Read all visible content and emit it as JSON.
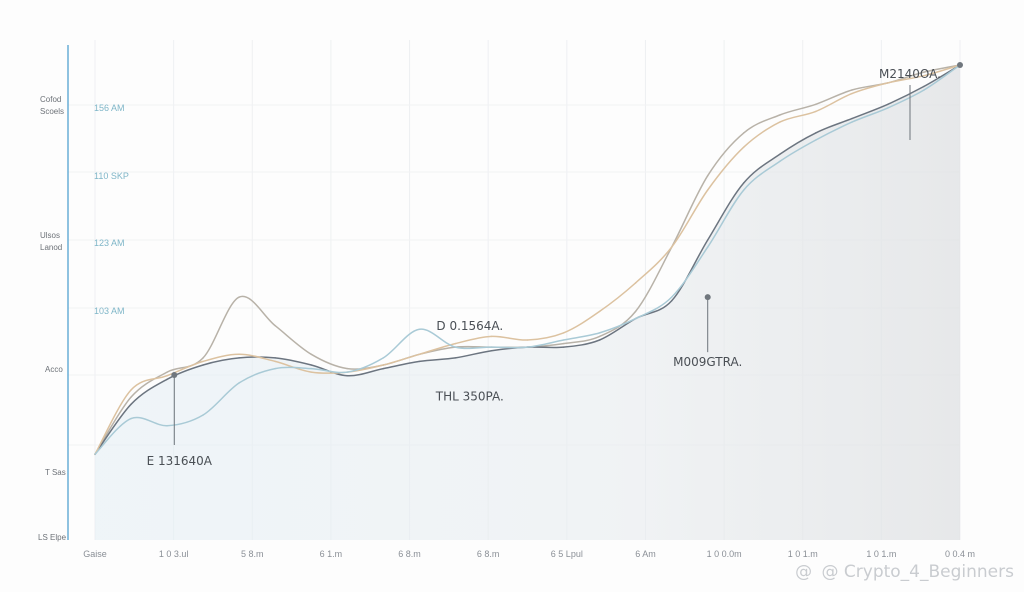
{
  "chart_data": {
    "type": "line",
    "title": "",
    "xlabel": "",
    "ylabel": "",
    "xlim": [
      0,
      12
    ],
    "ylim": [
      0,
      7
    ],
    "grid": true,
    "area_fill": true,
    "left_labels": [
      "Cofod Scoels",
      "Ulsos Lanod",
      "Acco",
      "T Sas",
      "LS Elpe"
    ],
    "yticks": [
      "156 AM",
      "110 SKP",
      "123 AM",
      "103 AM"
    ],
    "xticks": [
      "Gaise",
      "1 0 3.ul",
      "5 8.m",
      "6 1.m",
      "6 8.m",
      "6 8.m",
      "6 5 Lpul",
      "6 Am",
      "1 0 0.0m",
      "1 0 1.m",
      "1 0 1.m",
      "0 0.4 m"
    ],
    "series": [
      {
        "color": "#b8b2a8",
        "x": [
          0,
          0.5,
          1,
          1.5,
          2,
          2.5,
          3,
          3.5,
          4,
          4.5,
          5,
          5.5,
          6,
          6.5,
          7,
          7.5,
          8,
          8.5,
          9,
          9.5,
          10,
          10.5,
          11,
          11.5,
          12
        ],
        "values": [
          1.2,
          2.0,
          2.35,
          2.55,
          3.4,
          3.0,
          2.6,
          2.4,
          2.45,
          2.6,
          2.7,
          2.7,
          2.7,
          2.75,
          2.85,
          3.2,
          4.1,
          5.1,
          5.7,
          5.95,
          6.1,
          6.3,
          6.4,
          6.55,
          6.65
        ]
      },
      {
        "color": "#6c7580",
        "x": [
          0,
          0.5,
          1,
          1.5,
          2,
          2.5,
          3,
          3.5,
          4,
          4.5,
          5,
          5.5,
          6,
          6.5,
          7,
          7.5,
          8,
          8.5,
          9,
          9.5,
          10,
          10.5,
          11,
          11.5,
          12
        ],
        "values": [
          1.2,
          1.9,
          2.25,
          2.45,
          2.55,
          2.55,
          2.45,
          2.3,
          2.4,
          2.5,
          2.55,
          2.65,
          2.7,
          2.7,
          2.8,
          3.1,
          3.35,
          4.2,
          5.0,
          5.4,
          5.7,
          5.9,
          6.1,
          6.35,
          6.65
        ]
      },
      {
        "color": "#dcc2a0",
        "x": [
          0,
          0.5,
          1,
          1.5,
          2,
          2.5,
          3,
          3.5,
          4,
          4.5,
          5,
          5.5,
          6,
          6.5,
          7,
          7.5,
          8,
          8.5,
          9,
          9.5,
          10,
          10.5,
          11,
          11.5,
          12
        ],
        "values": [
          1.2,
          2.1,
          2.3,
          2.5,
          2.6,
          2.5,
          2.35,
          2.35,
          2.45,
          2.6,
          2.75,
          2.85,
          2.8,
          2.9,
          3.2,
          3.6,
          4.1,
          4.9,
          5.5,
          5.85,
          6.0,
          6.25,
          6.4,
          6.5,
          6.65
        ]
      },
      {
        "color": "#a9cad6",
        "x": [
          0,
          0.5,
          1,
          1.5,
          2,
          2.5,
          3,
          3.5,
          4,
          4.5,
          5,
          5.5,
          6,
          6.5,
          7,
          7.5,
          8,
          8.5,
          9,
          9.5,
          10,
          10.5,
          11,
          11.5,
          12
        ],
        "values": [
          1.2,
          1.7,
          1.6,
          1.75,
          2.2,
          2.4,
          2.4,
          2.35,
          2.55,
          2.95,
          2.7,
          2.7,
          2.7,
          2.8,
          2.9,
          3.1,
          3.4,
          4.1,
          4.9,
          5.3,
          5.6,
          5.85,
          6.05,
          6.3,
          6.65
        ]
      }
    ],
    "markers": [
      {
        "x": 1.1,
        "y": 2.31,
        "label": "E 131640A",
        "label_dx": 5
      },
      {
        "x": 8.5,
        "y": 3.4,
        "label": "M009GTRA.",
        "label_dx": 0
      },
      {
        "x": 12.0,
        "y": 6.65,
        "label": "M2140OA.",
        "label_dx": -50
      }
    ],
    "annotations": [
      {
        "x": 5.2,
        "y": 2.94,
        "label": "D 0.1564A."
      },
      {
        "x": 5.2,
        "y": 1.95,
        "label": "THL 350PA."
      }
    ]
  },
  "watermark": {
    "icon": "@",
    "text": "@ Crypto_4_Beginners"
  }
}
